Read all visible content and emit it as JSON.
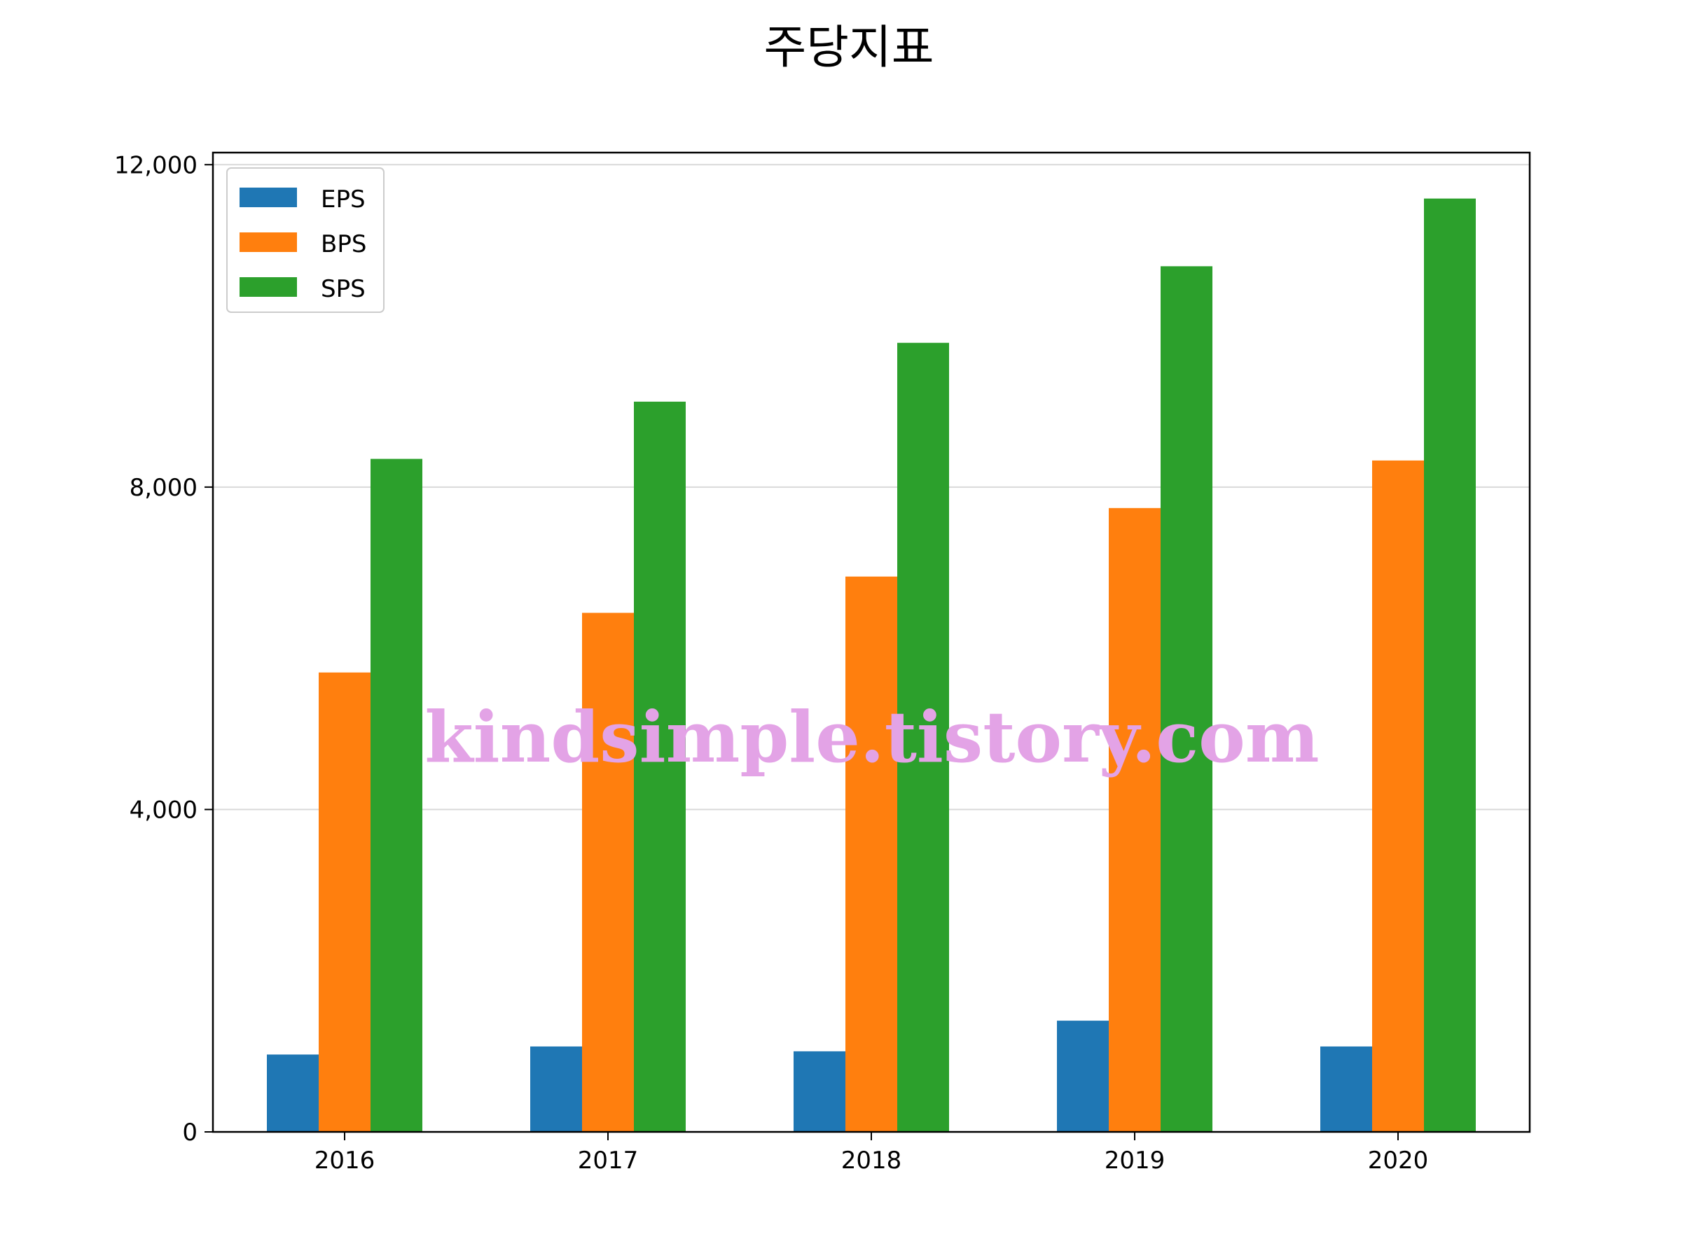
{
  "chart_data": {
    "type": "bar",
    "title": "주당지표",
    "xlabel": "",
    "ylabel": "",
    "categories": [
      "2016",
      "2017",
      "2018",
      "2019",
      "2020"
    ],
    "series": [
      {
        "name": "EPS",
        "color": "#1f77b4",
        "values": [
          960,
          1060,
          1000,
          1380,
          1060
        ]
      },
      {
        "name": "BPS",
        "color": "#ff7f0e",
        "values": [
          5700,
          6440,
          6890,
          7740,
          8330
        ]
      },
      {
        "name": "SPS",
        "color": "#2ca02c",
        "values": [
          8350,
          9060,
          9790,
          10740,
          11580
        ]
      }
    ],
    "ylim": [
      0,
      12150
    ],
    "yticks": [
      0,
      4000,
      8000,
      12000
    ],
    "ytick_labels": [
      "0",
      "4,000",
      "8,000",
      "12,000"
    ],
    "grid": "horizontal",
    "legend_position": "top-left",
    "watermark": "kindsimple.tistory.com"
  }
}
